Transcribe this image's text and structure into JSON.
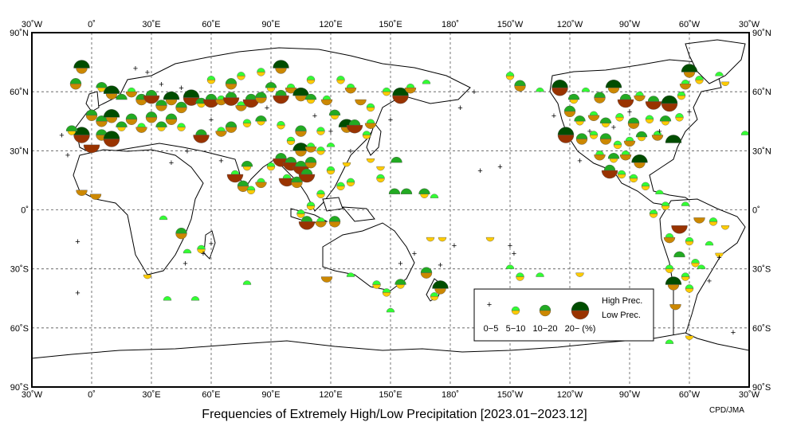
{
  "map": {
    "title": "Frequencies of Extremely High/Low Precipitation [2023.01−2023.12]",
    "credit": "CPD/JMA",
    "lon_labels": [
      "30˚W",
      "0˚",
      "30˚E",
      "60˚E",
      "90˚E",
      "120˚E",
      "150˚E",
      "180˚",
      "150˚W",
      "120˚W",
      "90˚W",
      "60˚W",
      "30˚W"
    ],
    "lat_labels": [
      "90˚N",
      "60˚N",
      "30˚N",
      "0˚",
      "30˚S",
      "60˚S",
      "90˚S"
    ],
    "lon_range": [
      -30,
      330
    ],
    "lat_range": [
      -90,
      90
    ],
    "colors": {
      "high_5_10": "#33ff33",
      "high_10_20": "#22aa22",
      "high_20": "#004d00",
      "low_5_10": "#ffcc00",
      "low_10_20": "#cc8800",
      "low_20": "#993300"
    },
    "legend": {
      "high_label": "High Prec.",
      "low_label": "Low Prec.",
      "bin_labels": [
        "0−5",
        "5−10",
        "10−20",
        "20− (%)"
      ]
    }
  },
  "stations": [
    {
      "lon": -5,
      "lat": 72,
      "h": 3,
      "l": 2
    },
    {
      "lon": -8,
      "lat": 64,
      "h": 2,
      "l": 2
    },
    {
      "lon": 5,
      "lat": 62,
      "h": 2,
      "l": 1
    },
    {
      "lon": 10,
      "lat": 59,
      "h": 3,
      "l": 2
    },
    {
      "lon": 15,
      "lat": 56,
      "h": 2,
      "l": 0
    },
    {
      "lon": 20,
      "lat": 60,
      "h": 1,
      "l": 2
    },
    {
      "lon": 25,
      "lat": 56,
      "h": 2,
      "l": 2
    },
    {
      "lon": 30,
      "lat": 58,
      "h": 2,
      "l": 3
    },
    {
      "lon": 35,
      "lat": 53,
      "h": 2,
      "l": 2
    },
    {
      "lon": 40,
      "lat": 56,
      "h": 3,
      "l": 2
    },
    {
      "lon": 45,
      "lat": 52,
      "h": 2,
      "l": 2
    },
    {
      "lon": 50,
      "lat": 57,
      "h": 3,
      "l": 3
    },
    {
      "lon": 55,
      "lat": 54,
      "h": 2,
      "l": 1
    },
    {
      "lon": 60,
      "lat": 56,
      "h": 2,
      "l": 3
    },
    {
      "lon": 65,
      "lat": 56,
      "h": 1,
      "l": 2
    },
    {
      "lon": 70,
      "lat": 57,
      "h": 2,
      "l": 3
    },
    {
      "lon": 75,
      "lat": 53,
      "h": 1,
      "l": 2
    },
    {
      "lon": 80,
      "lat": 56,
      "h": 2,
      "l": 3
    },
    {
      "lon": 85,
      "lat": 57,
      "h": 2,
      "l": 2
    },
    {
      "lon": 90,
      "lat": 62,
      "h": 2,
      "l": 1
    },
    {
      "lon": 95,
      "lat": 58,
      "h": 2,
      "l": 3
    },
    {
      "lon": 100,
      "lat": 62,
      "h": 1,
      "l": 2
    },
    {
      "lon": 105,
      "lat": 58,
      "h": 3,
      "l": 2
    },
    {
      "lon": 110,
      "lat": 56,
      "h": 2,
      "l": 1
    },
    {
      "lon": 118,
      "lat": 56,
      "h": 1,
      "l": 2
    },
    {
      "lon": 95,
      "lat": 72,
      "h": 3,
      "l": 2
    },
    {
      "lon": 85,
      "lat": 70,
      "h": 1,
      "l": 1
    },
    {
      "lon": 75,
      "lat": 68,
      "h": 1,
      "l": 1
    },
    {
      "lon": 70,
      "lat": 64,
      "h": 2,
      "l": 2
    },
    {
      "lon": 60,
      "lat": 66,
      "h": 1,
      "l": 1
    },
    {
      "lon": 110,
      "lat": 66,
      "h": 1,
      "l": 1
    },
    {
      "lon": 130,
      "lat": 62,
      "h": 1,
      "l": 2
    },
    {
      "lon": 135,
      "lat": 56,
      "h": 0,
      "l": 2
    },
    {
      "lon": 140,
      "lat": 52,
      "h": 1,
      "l": 1
    },
    {
      "lon": 148,
      "lat": 60,
      "h": 1,
      "l": 1
    },
    {
      "lon": 155,
      "lat": 58,
      "h": 3,
      "l": 3
    },
    {
      "lon": 160,
      "lat": 62,
      "h": 1,
      "l": 2
    },
    {
      "lon": 168,
      "lat": 64,
      "h": 1,
      "l": 0
    },
    {
      "lon": 125,
      "lat": 66,
      "h": 1,
      "l": 1
    },
    {
      "lon": 0,
      "lat": 48,
      "h": 2,
      "l": 2
    },
    {
      "lon": 5,
      "lat": 45,
      "h": 2,
      "l": 2
    },
    {
      "lon": 10,
      "lat": 47,
      "h": 3,
      "l": 2
    },
    {
      "lon": 15,
      "lat": 42,
      "h": 2,
      "l": 1
    },
    {
      "lon": 20,
      "lat": 46,
      "h": 2,
      "l": 2
    },
    {
      "lon": 25,
      "lat": 42,
      "h": 1,
      "l": 2
    },
    {
      "lon": 30,
      "lat": 47,
      "h": 2,
      "l": 2
    },
    {
      "lon": 35,
      "lat": 42,
      "h": 2,
      "l": 1
    },
    {
      "lon": 40,
      "lat": 46,
      "h": 2,
      "l": 2
    },
    {
      "lon": 45,
      "lat": 42,
      "h": 1,
      "l": 1
    },
    {
      "lon": -5,
      "lat": 38,
      "h": 3,
      "l": 3
    },
    {
      "lon": 0,
      "lat": 33,
      "h": 0,
      "l": 3
    },
    {
      "lon": 5,
      "lat": 38,
      "h": 2,
      "l": 2
    },
    {
      "lon": 10,
      "lat": 36,
      "h": 3,
      "l": 3
    },
    {
      "lon": -10,
      "lat": 40,
      "h": 2,
      "l": 1
    },
    {
      "lon": 55,
      "lat": 38,
      "h": 2,
      "l": 3
    },
    {
      "lon": 65,
      "lat": 40,
      "h": 1,
      "l": 2
    },
    {
      "lon": 70,
      "lat": 42,
      "h": 2,
      "l": 2
    },
    {
      "lon": 78,
      "lat": 44,
      "h": 1,
      "l": 1
    },
    {
      "lon": 85,
      "lat": 45,
      "h": 2,
      "l": 1
    },
    {
      "lon": 95,
      "lat": 43,
      "h": 1,
      "l": 1
    },
    {
      "lon": 105,
      "lat": 40,
      "h": 2,
      "l": 2
    },
    {
      "lon": 115,
      "lat": 40,
      "h": 1,
      "l": 1
    },
    {
      "lon": 122,
      "lat": 48,
      "h": 2,
      "l": 1
    },
    {
      "lon": 128,
      "lat": 42,
      "h": 3,
      "l": 2
    },
    {
      "lon": 132,
      "lat": 43,
      "h": 2,
      "l": 3
    },
    {
      "lon": 138,
      "lat": 38,
      "h": 1,
      "l": 1
    },
    {
      "lon": 140,
      "lat": 44,
      "h": 1,
      "l": 2
    },
    {
      "lon": 100,
      "lat": 35,
      "h": 1,
      "l": 1
    },
    {
      "lon": 105,
      "lat": 30,
      "h": 3,
      "l": 2
    },
    {
      "lon": 110,
      "lat": 32,
      "h": 1,
      "l": 2
    },
    {
      "lon": 115,
      "lat": 30,
      "h": 1,
      "l": 1
    },
    {
      "lon": 120,
      "lat": 32,
      "h": 1,
      "l": 0
    },
    {
      "lon": 95,
      "lat": 26,
      "h": 2,
      "l": 3
    },
    {
      "lon": 100,
      "lat": 24,
      "h": 2,
      "l": 3
    },
    {
      "lon": 105,
      "lat": 22,
      "h": 2,
      "l": 3
    },
    {
      "lon": 110,
      "lat": 24,
      "h": 2,
      "l": 2
    },
    {
      "lon": 98,
      "lat": 16,
      "h": 1,
      "l": 3
    },
    {
      "lon": 103,
      "lat": 14,
      "h": 2,
      "l": 2
    },
    {
      "lon": 108,
      "lat": 18,
      "h": 2,
      "l": 3
    },
    {
      "lon": 78,
      "lat": 22,
      "h": 2,
      "l": 1
    },
    {
      "lon": 72,
      "lat": 18,
      "h": 1,
      "l": 3
    },
    {
      "lon": 76,
      "lat": 12,
      "h": 2,
      "l": 2
    },
    {
      "lon": 80,
      "lat": 10,
      "h": 1,
      "l": 1
    },
    {
      "lon": 85,
      "lat": 14,
      "h": 1,
      "l": 2
    },
    {
      "lon": 90,
      "lat": 22,
      "h": 1,
      "l": 1
    },
    {
      "lon": 120,
      "lat": 20,
      "h": 1,
      "l": 1
    },
    {
      "lon": 125,
      "lat": 12,
      "h": 1,
      "l": 1
    },
    {
      "lon": 128,
      "lat": 24,
      "h": 0,
      "l": 1
    },
    {
      "lon": 130,
      "lat": 14,
      "h": 1,
      "l": 1
    },
    {
      "lon": 115,
      "lat": 8,
      "h": 1,
      "l": 1
    },
    {
      "lon": 105,
      "lat": -2,
      "h": 1,
      "l": 1
    },
    {
      "lon": 108,
      "lat": -6,
      "h": 2,
      "l": 3
    },
    {
      "lon": 115,
      "lat": -6,
      "h": 1,
      "l": 2
    },
    {
      "lon": 122,
      "lat": -6,
      "h": 2,
      "l": 2
    },
    {
      "lon": 110,
      "lat": 2,
      "h": 1,
      "l": 1
    },
    {
      "lon": 140,
      "lat": 26,
      "h": 0,
      "l": 1
    },
    {
      "lon": 145,
      "lat": 16,
      "h": 1,
      "l": 1
    },
    {
      "lon": 152,
      "lat": 8,
      "h": 2,
      "l": 0
    },
    {
      "lon": 158,
      "lat": 8,
      "h": 2,
      "l": 0
    },
    {
      "lon": 167,
      "lat": 8,
      "h": 2,
      "l": 1
    },
    {
      "lon": 172,
      "lat": 6,
      "h": 1,
      "l": 0
    },
    {
      "lon": 153,
      "lat": 24,
      "h": 2,
      "l": 0
    },
    {
      "lon": 145,
      "lat": 22,
      "h": 0,
      "l": 1
    },
    {
      "lon": 170,
      "lat": -14,
      "h": 0,
      "l": 1
    },
    {
      "lon": 176,
      "lat": -14,
      "h": 0,
      "l": 1
    },
    {
      "lon": 200,
      "lat": -14,
      "h": 0,
      "l": 1
    },
    {
      "lon": 210,
      "lat": -30,
      "h": 1,
      "l": 0
    },
    {
      "lon": 215,
      "lat": -34,
      "h": 1,
      "l": 1
    },
    {
      "lon": 225,
      "lat": -34,
      "h": 1,
      "l": 0
    },
    {
      "lon": 245,
      "lat": -32,
      "h": 0,
      "l": 1
    },
    {
      "lon": 175,
      "lat": -40,
      "h": 3,
      "l": 2
    },
    {
      "lon": 172,
      "lat": -44,
      "h": 1,
      "l": 1
    },
    {
      "lon": 168,
      "lat": -32,
      "h": 2,
      "l": 2
    },
    {
      "lon": 155,
      "lat": -38,
      "h": 2,
      "l": 1
    },
    {
      "lon": 148,
      "lat": -42,
      "h": 1,
      "l": 1
    },
    {
      "lon": 150,
      "lat": -52,
      "h": 1,
      "l": 0
    },
    {
      "lon": 118,
      "lat": -34,
      "h": 0,
      "l": 2
    },
    {
      "lon": 130,
      "lat": -34,
      "h": 1,
      "l": 0
    },
    {
      "lon": 143,
      "lat": -38,
      "h": 1,
      "l": 1
    },
    {
      "lon": 45,
      "lat": -12,
      "h": 2,
      "l": 2
    },
    {
      "lon": 55,
      "lat": -20,
      "h": 1,
      "l": 1
    },
    {
      "lon": 48,
      "lat": -22,
      "h": 1,
      "l": 0
    },
    {
      "lon": 28,
      "lat": -33,
      "h": 0,
      "l": 1
    },
    {
      "lon": 78,
      "lat": -38,
      "h": 1,
      "l": 0
    },
    {
      "lon": 38,
      "lat": -46,
      "h": 1,
      "l": 0
    },
    {
      "lon": 52,
      "lat": -46,
      "h": 1,
      "l": 0
    },
    {
      "lon": -5,
      "lat": 10,
      "h": 0,
      "l": 2
    },
    {
      "lon": 2,
      "lat": 8,
      "h": 0,
      "l": 2
    },
    {
      "lon": 36,
      "lat": -5,
      "h": 1,
      "l": 0
    },
    {
      "lon": 210,
      "lat": 68,
      "h": 1,
      "l": 1
    },
    {
      "lon": 215,
      "lat": 63,
      "h": 2,
      "l": 2
    },
    {
      "lon": 225,
      "lat": 60,
      "h": 1,
      "l": 0
    },
    {
      "lon": 235,
      "lat": 62,
      "h": 3,
      "l": 3
    },
    {
      "lon": 242,
      "lat": 56,
      "h": 2,
      "l": 1
    },
    {
      "lon": 248,
      "lat": 60,
      "h": 1,
      "l": 0
    },
    {
      "lon": 255,
      "lat": 57,
      "h": 2,
      "l": 2
    },
    {
      "lon": 262,
      "lat": 62,
      "h": 3,
      "l": 2
    },
    {
      "lon": 268,
      "lat": 56,
      "h": 2,
      "l": 3
    },
    {
      "lon": 275,
      "lat": 58,
      "h": 1,
      "l": 2
    },
    {
      "lon": 282,
      "lat": 55,
      "h": 2,
      "l": 3
    },
    {
      "lon": 290,
      "lat": 54,
      "h": 3,
      "l": 3
    },
    {
      "lon": 296,
      "lat": 58,
      "h": 1,
      "l": 1
    },
    {
      "lon": 298,
      "lat": 64,
      "h": 1,
      "l": 2
    },
    {
      "lon": 305,
      "lat": 66,
      "h": 1,
      "l": 1
    },
    {
      "lon": 315,
      "lat": 68,
      "h": 1,
      "l": 0
    },
    {
      "lon": 300,
      "lat": 70,
      "h": 3,
      "l": 2
    },
    {
      "lon": 240,
      "lat": 50,
      "h": 2,
      "l": 2
    },
    {
      "lon": 245,
      "lat": 45,
      "h": 2,
      "l": 1
    },
    {
      "lon": 252,
      "lat": 48,
      "h": 1,
      "l": 2
    },
    {
      "lon": 258,
      "lat": 44,
      "h": 2,
      "l": 1
    },
    {
      "lon": 265,
      "lat": 47,
      "h": 1,
      "l": 1
    },
    {
      "lon": 272,
      "lat": 44,
      "h": 2,
      "l": 2
    },
    {
      "lon": 280,
      "lat": 46,
      "h": 1,
      "l": 1
    },
    {
      "lon": 288,
      "lat": 45,
      "h": 2,
      "l": 1
    },
    {
      "lon": 295,
      "lat": 47,
      "h": 1,
      "l": 1
    },
    {
      "lon": 238,
      "lat": 38,
      "h": 3,
      "l": 3
    },
    {
      "lon": 246,
      "lat": 36,
      "h": 2,
      "l": 2
    },
    {
      "lon": 252,
      "lat": 38,
      "h": 1,
      "l": 1
    },
    {
      "lon": 258,
      "lat": 36,
      "h": 2,
      "l": 2
    },
    {
      "lon": 264,
      "lat": 33,
      "h": 1,
      "l": 1
    },
    {
      "lon": 270,
      "lat": 35,
      "h": 1,
      "l": 2
    },
    {
      "lon": 276,
      "lat": 37,
      "h": 2,
      "l": 1
    },
    {
      "lon": 284,
      "lat": 38,
      "h": 1,
      "l": 2
    },
    {
      "lon": 292,
      "lat": 34,
      "h": 3,
      "l": 0
    },
    {
      "lon": 255,
      "lat": 28,
      "h": 1,
      "l": 2
    },
    {
      "lon": 262,
      "lat": 26,
      "h": 2,
      "l": 1
    },
    {
      "lon": 268,
      "lat": 28,
      "h": 1,
      "l": 2
    },
    {
      "lon": 275,
      "lat": 24,
      "h": 3,
      "l": 2
    },
    {
      "lon": 260,
      "lat": 20,
      "h": 2,
      "l": 3
    },
    {
      "lon": 266,
      "lat": 18,
      "h": 1,
      "l": 1
    },
    {
      "lon": 272,
      "lat": 16,
      "h": 1,
      "l": 1
    },
    {
      "lon": 278,
      "lat": 12,
      "h": 1,
      "l": 1
    },
    {
      "lon": 285,
      "lat": 8,
      "h": 1,
      "l": 0
    },
    {
      "lon": 288,
      "lat": 2,
      "h": 1,
      "l": 1
    },
    {
      "lon": 298,
      "lat": 2,
      "h": 1,
      "l": 0
    },
    {
      "lon": 282,
      "lat": -2,
      "h": 1,
      "l": 1
    },
    {
      "lon": 295,
      "lat": -8,
      "h": 0,
      "l": 3
    },
    {
      "lon": 305,
      "lat": -4,
      "h": 0,
      "l": 2
    },
    {
      "lon": 312,
      "lat": -6,
      "h": 1,
      "l": 1
    },
    {
      "lon": 318,
      "lat": -8,
      "h": 0,
      "l": 1
    },
    {
      "lon": 290,
      "lat": -14,
      "h": 1,
      "l": 2
    },
    {
      "lon": 300,
      "lat": -16,
      "h": 1,
      "l": 1
    },
    {
      "lon": 310,
      "lat": -18,
      "h": 1,
      "l": 0
    },
    {
      "lon": 315,
      "lat": -22,
      "h": 0,
      "l": 1
    },
    {
      "lon": 295,
      "lat": -24,
      "h": 2,
      "l": 0
    },
    {
      "lon": 303,
      "lat": -27,
      "h": 1,
      "l": 1
    },
    {
      "lon": 290,
      "lat": -30,
      "h": 1,
      "l": 1
    },
    {
      "lon": 298,
      "lat": -34,
      "h": 1,
      "l": 1
    },
    {
      "lon": 306,
      "lat": -30,
      "h": 1,
      "l": 0
    },
    {
      "lon": 292,
      "lat": -38,
      "h": 3,
      "l": 2
    },
    {
      "lon": 300,
      "lat": -40,
      "h": 1,
      "l": 1
    },
    {
      "lon": 293,
      "lat": -48,
      "h": 0,
      "l": 2
    },
    {
      "lon": 300,
      "lat": -64,
      "h": 0,
      "l": 1
    },
    {
      "lon": 290,
      "lat": -68,
      "h": 1,
      "l": 0
    },
    {
      "lon": 328,
      "lat": 38,
      "h": 1,
      "l": 0
    },
    {
      "lon": 318,
      "lat": 65,
      "h": 0,
      "l": 1
    }
  ],
  "plus_markers": [
    {
      "lon": -15,
      "lat": 38
    },
    {
      "lon": -12,
      "lat": 28
    },
    {
      "lon": -7,
      "lat": -16
    },
    {
      "lon": -7,
      "lat": -42
    },
    {
      "lon": 22,
      "lat": 72
    },
    {
      "lon": 28,
      "lat": 70
    },
    {
      "lon": 35,
      "lat": 64
    },
    {
      "lon": 45,
      "lat": 62
    },
    {
      "lon": 56,
      "lat": -22
    },
    {
      "lon": 47,
      "lat": -27
    },
    {
      "lon": 60,
      "lat": -17
    },
    {
      "lon": 150,
      "lat": 46
    },
    {
      "lon": 185,
      "lat": 52
    },
    {
      "lon": 192,
      "lat": 60
    },
    {
      "lon": 175,
      "lat": -28
    },
    {
      "lon": 162,
      "lat": -22
    },
    {
      "lon": 155,
      "lat": -27
    },
    {
      "lon": 210,
      "lat": -18
    },
    {
      "lon": 212,
      "lat": -22
    },
    {
      "lon": 182,
      "lat": -18
    },
    {
      "lon": 205,
      "lat": 22
    },
    {
      "lon": 195,
      "lat": 20
    },
    {
      "lon": 245,
      "lat": 25
    },
    {
      "lon": 262,
      "lat": 42
    },
    {
      "lon": 232,
      "lat": 48
    },
    {
      "lon": 250,
      "lat": 40
    },
    {
      "lon": 285,
      "lat": 40
    },
    {
      "lon": 270,
      "lat": 50
    },
    {
      "lon": 300,
      "lat": 50
    },
    {
      "lon": 315,
      "lat": -24
    },
    {
      "lon": 322,
      "lat": -62
    },
    {
      "lon": 310,
      "lat": -36
    },
    {
      "lon": 60,
      "lat": 46
    },
    {
      "lon": 88,
      "lat": 52
    },
    {
      "lon": 112,
      "lat": 48
    },
    {
      "lon": 120,
      "lat": 40
    },
    {
      "lon": 48,
      "lat": 30
    },
    {
      "lon": 40,
      "lat": 24
    },
    {
      "lon": 65,
      "lat": 25
    },
    {
      "lon": 130,
      "lat": 30
    }
  ]
}
